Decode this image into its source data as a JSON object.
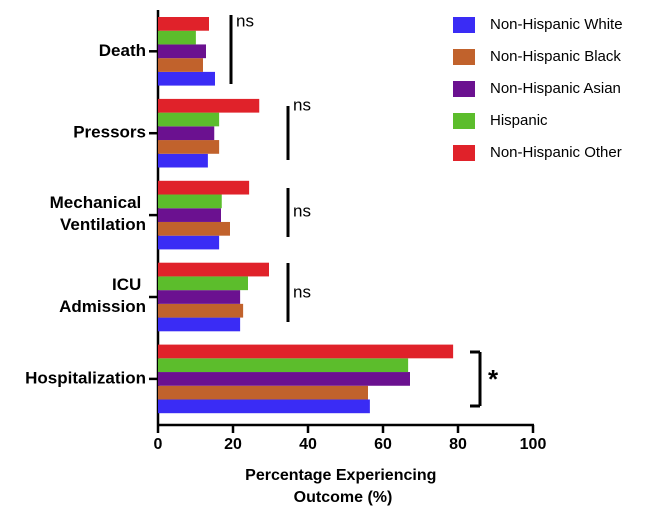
{
  "chart_data": {
    "type": "bar",
    "orientation": "horizontal",
    "categories": [
      "Death",
      "Pressors",
      "Mechanical Ventilation",
      "ICU Admission",
      "Hospitalization"
    ],
    "series": [
      {
        "name": "Non-Hispanic White",
        "color": "#3a2cf5",
        "values": [
          15.2,
          13.3,
          16.3,
          21.9,
          56.5
        ]
      },
      {
        "name": "Non-Hispanic Black",
        "color": "#c1622c",
        "values": [
          12,
          16.3,
          19.2,
          22.7,
          56
        ]
      },
      {
        "name": "Non-Hispanic Asian",
        "color": "#6b1190",
        "values": [
          12.8,
          15,
          16.8,
          21.9,
          67.2
        ]
      },
      {
        "name": "Hispanic",
        "color": "#5cbd2c",
        "values": [
          10.1,
          16.3,
          17,
          24,
          66.7
        ]
      },
      {
        "name": "Non-Hispanic Other",
        "color": "#e0222a",
        "values": [
          13.6,
          27,
          24.3,
          29.6,
          78.7
        ]
      }
    ],
    "xlabel": "Percentage Experiencing Outcome (%)",
    "xlim": [
      0,
      100
    ],
    "xticks": [
      0,
      20,
      40,
      60,
      80,
      100
    ],
    "annotations": [
      "ns",
      "ns",
      "ns",
      "ns",
      "*"
    ],
    "legend": "top-right",
    "grid": false
  }
}
